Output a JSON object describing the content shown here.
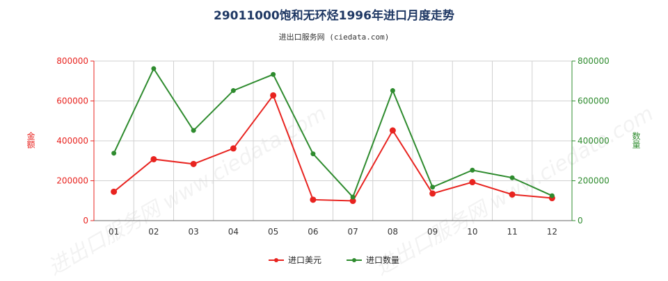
{
  "title": "29011000饱和无环烃1996年进口月度走势",
  "subtitle": "进出口服务网 (ciedata.com)",
  "watermark": "进出口服务网 www.ciedata.com",
  "colors": {
    "usd": "#e8231f",
    "qty": "#2e8b2e",
    "grid": "#d0d0d0"
  },
  "chart_data": {
    "type": "line",
    "title": "29011000饱和无环烃1996年进口月度走势",
    "categories": [
      "01",
      "02",
      "03",
      "04",
      "05",
      "06",
      "07",
      "08",
      "09",
      "10",
      "11",
      "12"
    ],
    "y_left": {
      "label": "金额",
      "lim": [
        0,
        800000
      ],
      "ticks": [
        "0",
        "200000",
        "400000",
        "600000",
        "800000"
      ]
    },
    "y_right": {
      "label": "数量",
      "lim": [
        0,
        800000
      ],
      "ticks": [
        "0",
        "200000",
        "400000",
        "600000",
        "800000"
      ]
    },
    "grid": true,
    "legend_position": "bottom",
    "series": [
      {
        "name": "进口美元",
        "axis": "left",
        "color": "#e8231f",
        "values": [
          145000,
          308000,
          284000,
          362000,
          628000,
          105000,
          99000,
          452000,
          136000,
          193000,
          131000,
          113000
        ]
      },
      {
        "name": "进口数量",
        "axis": "right",
        "color": "#2e8b2e",
        "values": [
          338000,
          762000,
          452000,
          652000,
          733000,
          335000,
          118000,
          652000,
          168000,
          253000,
          215000,
          125000
        ]
      }
    ]
  }
}
